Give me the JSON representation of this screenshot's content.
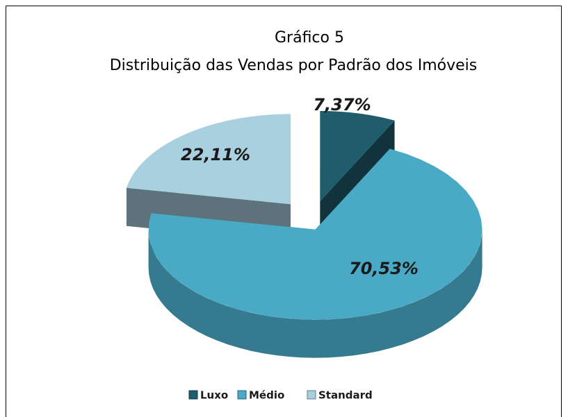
{
  "chart_data": {
    "type": "pie3d",
    "title": "Gráfico 5",
    "subtitle": "Distribuição das Vendas por Padrão dos Imóveis",
    "categories": [
      "Luxo",
      "Médio",
      "Standard"
    ],
    "values": [
      7.37,
      70.53,
      22.11
    ],
    "value_labels": [
      "7,37%",
      "70,53%",
      "22,11%"
    ],
    "colors": [
      "#1f5d6d",
      "#4aaac6",
      "#a9d0de"
    ],
    "legend": "bottom"
  }
}
